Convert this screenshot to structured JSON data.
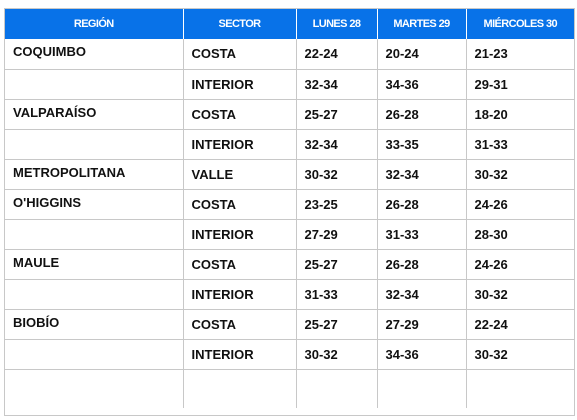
{
  "table": {
    "headers": [
      "REGIÓN",
      "SECTOR",
      "LUNES 28",
      "MARTES 29",
      "MIÉRCOLES 30"
    ],
    "rows": [
      [
        "COQUIMBO",
        "COSTA",
        "22-24",
        "20-24",
        "21-23"
      ],
      [
        "",
        "INTERIOR",
        "32-34",
        "34-36",
        "29-31"
      ],
      [
        "VALPARAÍSO",
        "COSTA",
        "25-27",
        "26-28",
        "18-20"
      ],
      [
        "",
        "INTERIOR",
        "32-34",
        "33-35",
        "31-33"
      ],
      [
        "METROPOLITANA",
        "VALLE",
        "30-32",
        "32-34",
        "30-32"
      ],
      [
        "O'HIGGINS",
        "COSTA",
        "23-25",
        "26-28",
        "24-26"
      ],
      [
        "",
        "INTERIOR",
        "27-29",
        "31-33",
        "28-30"
      ],
      [
        "MAULE",
        "COSTA",
        "25-27",
        "26-28",
        "24-26"
      ],
      [
        "",
        "INTERIOR",
        "31-33",
        "32-34",
        "30-32"
      ],
      [
        "BIOBÍO",
        "COSTA",
        "25-27",
        "27-29",
        "22-24"
      ],
      [
        "",
        "INTERIOR",
        "30-32",
        "34-36",
        "30-32"
      ]
    ]
  },
  "colors": {
    "header_bg": "#0872e8",
    "header_text": "#ffffff",
    "border": "#c8c8c8",
    "cell_text": "#111111"
  }
}
